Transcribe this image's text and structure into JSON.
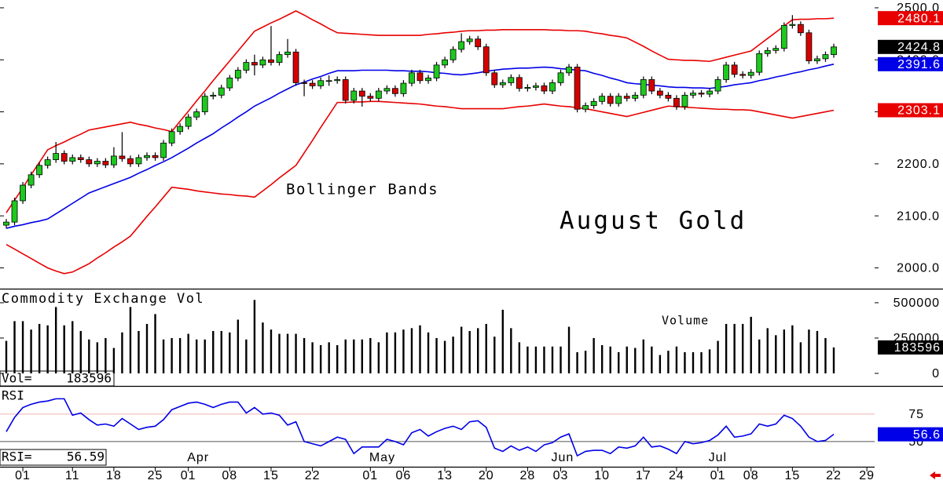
{
  "chart_data": {
    "type": "candlestick",
    "title": "August Gold",
    "annotation": "Bollinger Bands",
    "categories": [
      null,
      null,
      "01",
      null,
      null,
      null,
      null,
      null,
      "11",
      null,
      null,
      null,
      null,
      "18",
      null,
      null,
      null,
      null,
      "25",
      null,
      null,
      null,
      "01",
      null,
      null,
      null,
      null,
      "08",
      null,
      null,
      null,
      null,
      "15",
      null,
      null,
      null,
      null,
      "22",
      null,
      null,
      null,
      null,
      null,
      null,
      "01",
      null,
      null,
      null,
      "06",
      null,
      null,
      null,
      null,
      "13",
      null,
      null,
      null,
      null,
      "20",
      null,
      null,
      null,
      null,
      "28",
      null,
      null,
      null,
      "03",
      null,
      null,
      null,
      null,
      "10",
      null,
      null,
      null,
      null,
      "17",
      null,
      null,
      null,
      "24",
      null,
      null,
      null,
      null,
      "01",
      null,
      null,
      null,
      "08",
      null,
      null,
      null,
      null,
      "15",
      null,
      null,
      null,
      null,
      "22",
      null,
      null,
      null,
      "29"
    ],
    "months": [
      null,
      null,
      null,
      null,
      null,
      null,
      null,
      null,
      null,
      null,
      null,
      null,
      null,
      null,
      null,
      null,
      null,
      null,
      null,
      null,
      null,
      null,
      null,
      "Apr",
      null,
      null,
      null,
      null,
      null,
      null,
      null,
      null,
      null,
      null,
      null,
      null,
      null,
      null,
      null,
      null,
      null,
      null,
      null,
      null,
      null,
      "May",
      null,
      null,
      null,
      null,
      null,
      null,
      null,
      null,
      null,
      null,
      null,
      null,
      null,
      null,
      null,
      null,
      null,
      null,
      null,
      null,
      null,
      "Jun",
      null,
      null,
      null,
      null,
      null,
      null,
      null,
      null,
      null,
      null,
      null,
      null,
      null,
      null,
      null,
      null,
      null,
      null,
      "Jul",
      null,
      null,
      null,
      null,
      null,
      null,
      null,
      null,
      null,
      null,
      null,
      null,
      null,
      null,
      null,
      null,
      null,
      null
    ],
    "ylim": [
      1960,
      2515
    ],
    "yticks": [
      {
        "value": 2000,
        "label": "2000.0"
      },
      {
        "value": 2100,
        "label": "2100.0"
      },
      {
        "value": 2200,
        "label": "2200.0"
      },
      {
        "value": 2300,
        "label": "2300.0"
      },
      {
        "value": 2400,
        "label": "2400.0"
      },
      {
        "value": 2500,
        "label": "2500.0"
      }
    ],
    "up_color": "#1ec81e",
    "down_color": "#d40000",
    "close_label_color": "#000000",
    "open": [
      2082,
      2088,
      2129,
      2159,
      2179,
      2197,
      2208,
      2220,
      2205,
      2212,
      2208,
      2200,
      2205,
      2198,
      2215,
      2210,
      2200,
      2212,
      2216,
      2212,
      2240,
      2262,
      2272,
      2290,
      2300,
      2330,
      2332,
      2346,
      2365,
      2380,
      2395,
      2390,
      2400,
      2395,
      2410,
      2415,
      2356,
      2355,
      2350,
      2360,
      2360,
      2362,
      2322,
      2340,
      2330,
      2326,
      2340,
      2345,
      2335,
      2355,
      2375,
      2360,
      2365,
      2390,
      2400,
      2420,
      2435,
      2440,
      2425,
      2375,
      2352,
      2356,
      2366,
      2345,
      2347,
      2350,
      2340,
      2356,
      2375,
      2386,
      2305,
      2312,
      2320,
      2330,
      2316,
      2330,
      2326,
      2332,
      2362,
      2340,
      2332,
      2326,
      2310,
      2332,
      2336,
      2334,
      2340,
      2362,
      2390,
      2372,
      2370,
      2376,
      2412,
      2418,
      2422,
      2466,
      2468,
      2452,
      2398,
      2402,
      2410,
      null,
      null,
      null,
      null
    ],
    "high": [
      2094,
      2135,
      2165,
      2185,
      2203,
      2214,
      2242,
      2226,
      2218,
      2218,
      2214,
      2211,
      2211,
      2232,
      2261,
      2216,
      2218,
      2222,
      2222,
      2246,
      2268,
      2278,
      2296,
      2306,
      2336,
      2338,
      2352,
      2371,
      2386,
      2401,
      2410,
      2406,
      2465,
      2416,
      2440,
      2421,
      2362,
      2361,
      2366,
      2370,
      2368,
      2368,
      2346,
      2346,
      2336,
      2346,
      2351,
      2351,
      2361,
      2381,
      2381,
      2371,
      2396,
      2406,
      2426,
      2451,
      2446,
      2446,
      2431,
      2381,
      2362,
      2372,
      2372,
      2353,
      2356,
      2356,
      2362,
      2381,
      2392,
      2392,
      2318,
      2326,
      2336,
      2336,
      2336,
      2336,
      2338,
      2368,
      2368,
      2346,
      2338,
      2332,
      2338,
      2342,
      2342,
      2346,
      2368,
      2396,
      2396,
      2378,
      2382,
      2418,
      2424,
      2428,
      2472,
      2486,
      2474,
      2458,
      2408,
      2416,
      2431,
      null,
      null,
      null,
      null
    ],
    "low": [
      2076,
      2082,
      2123,
      2153,
      2173,
      2191,
      2202,
      2199,
      2199,
      2202,
      2194,
      2194,
      2192,
      2192,
      2204,
      2194,
      2194,
      2206,
      2206,
      2206,
      2234,
      2256,
      2266,
      2284,
      2294,
      2324,
      2326,
      2340,
      2359,
      2374,
      2370,
      2384,
      2389,
      2389,
      2404,
      2350,
      2330,
      2344,
      2344,
      2350,
      2354,
      2316,
      2316,
      2310,
      2320,
      2320,
      2334,
      2329,
      2329,
      2349,
      2354,
      2354,
      2359,
      2384,
      2394,
      2414,
      2429,
      2419,
      2369,
      2346,
      2346,
      2350,
      2339,
      2339,
      2341,
      2334,
      2334,
      2350,
      2369,
      2299,
      2299,
      2306,
      2314,
      2310,
      2310,
      2320,
      2320,
      2326,
      2334,
      2326,
      2320,
      2304,
      2304,
      2326,
      2328,
      2328,
      2334,
      2356,
      2366,
      2364,
      2364,
      2370,
      2406,
      2412,
      2416,
      2460,
      2446,
      2392,
      2392,
      2396,
      2404,
      null,
      null,
      null,
      null
    ],
    "close": [
      2088,
      2129,
      2159,
      2179,
      2197,
      2208,
      2220,
      2205,
      2212,
      2208,
      2200,
      2205,
      2198,
      2215,
      2210,
      2200,
      2212,
      2216,
      2212,
      2240,
      2262,
      2272,
      2290,
      2300,
      2330,
      2332,
      2346,
      2365,
      2380,
      2395,
      2390,
      2400,
      2395,
      2410,
      2415,
      2356,
      2355,
      2350,
      2360,
      2360,
      2362,
      2322,
      2340,
      2330,
      2326,
      2340,
      2345,
      2335,
      2355,
      2375,
      2360,
      2365,
      2390,
      2400,
      2420,
      2435,
      2440,
      2425,
      2375,
      2352,
      2356,
      2366,
      2345,
      2347,
      2350,
      2340,
      2356,
      2375,
      2386,
      2305,
      2312,
      2320,
      2330,
      2316,
      2330,
      2326,
      2332,
      2362,
      2340,
      2332,
      2326,
      2310,
      2332,
      2336,
      2334,
      2340,
      2362,
      2390,
      2372,
      2370,
      2376,
      2412,
      2418,
      2422,
      2466,
      2468,
      2452,
      2398,
      2402,
      2410,
      2424.8,
      null,
      null,
      null,
      null
    ],
    "bands": [
      {
        "color": "#e80000",
        "values": [
          2106,
          2130,
          2154,
          2179,
          2203,
          2227,
          2235,
          2242,
          2250,
          2257,
          2265,
          2268,
          2271,
          2274,
          2277,
          2280,
          2276,
          2273,
          2269,
          2266,
          2262,
          2282,
          2301,
          2321,
          2340,
          2360,
          2379,
          2398,
          2417,
          2436,
          2455,
          2463,
          2471,
          2478,
          2486,
          2494,
          2486,
          2477,
          2469,
          2460,
          2452,
          2451,
          2450,
          2449,
          2448,
          2447,
          2447,
          2447,
          2447,
          2447,
          2447,
          2449,
          2450,
          2452,
          2453,
          2455,
          2456,
          2456,
          2457,
          2457,
          2458,
          2458,
          2458,
          2458,
          2458,
          2458,
          2457,
          2457,
          2456,
          2456,
          2455,
          2452,
          2450,
          2447,
          2445,
          2442,
          2434,
          2426,
          2417,
          2409,
          2401,
          2400,
          2399,
          2399,
          2398,
          2397,
          2401,
          2405,
          2409,
          2413,
          2417,
          2429,
          2441,
          2453,
          2465,
          2477,
          2478,
          2478,
          2479,
          2479,
          2480.1,
          null,
          null,
          null,
          null
        ]
      },
      {
        "color": "#0000e8",
        "values": [
          2076,
          2080,
          2083,
          2087,
          2090,
          2094,
          2104,
          2114,
          2124,
          2134,
          2144,
          2150,
          2156,
          2162,
          2168,
          2174,
          2182,
          2189,
          2197,
          2204,
          2212,
          2221,
          2230,
          2240,
          2249,
          2258,
          2269,
          2279,
          2290,
          2300,
          2311,
          2319,
          2327,
          2336,
          2344,
          2352,
          2357,
          2363,
          2368,
          2374,
          2379,
          2379,
          2379,
          2380,
          2380,
          2380,
          2380,
          2379,
          2379,
          2378,
          2378,
          2377,
          2375,
          2374,
          2372,
          2371,
          2373,
          2375,
          2378,
          2380,
          2382,
          2383,
          2384,
          2384,
          2385,
          2386,
          2385,
          2383,
          2382,
          2380,
          2379,
          2374,
          2370,
          2365,
          2361,
          2356,
          2354,
          2353,
          2351,
          2350,
          2348,
          2347,
          2347,
          2346,
          2346,
          2345,
          2347,
          2349,
          2352,
          2354,
          2356,
          2360,
          2363,
          2367,
          2370,
          2374,
          2377,
          2381,
          2384,
          2388,
          2391.6,
          null,
          null,
          null,
          null
        ]
      },
      {
        "color": "#e80000",
        "values": [
          2045,
          2036,
          2027,
          2018,
          2009,
          2000,
          1994,
          1989,
          1992,
          2000,
          2008,
          2019,
          2029,
          2040,
          2050,
          2061,
          2080,
          2099,
          2117,
          2136,
          2155,
          2153,
          2151,
          2148,
          2146,
          2144,
          2142,
          2141,
          2139,
          2138,
          2136,
          2148,
          2160,
          2173,
          2185,
          2197,
          2221,
          2245,
          2270,
          2294,
          2318,
          2318,
          2319,
          2319,
          2320,
          2320,
          2319,
          2318,
          2317,
          2316,
          2315,
          2313,
          2311,
          2310,
          2308,
          2306,
          2306,
          2306,
          2306,
          2306,
          2306,
          2308,
          2310,
          2311,
          2313,
          2315,
          2313,
          2311,
          2310,
          2308,
          2306,
          2303,
          2300,
          2297,
          2294,
          2291,
          2295,
          2299,
          2303,
          2307,
          2311,
          2310,
          2309,
          2308,
          2307,
          2306,
          2305,
          2305,
          2304,
          2304,
          2303,
          2300,
          2297,
          2294,
          2291,
          2288,
          2291,
          2294,
          2297,
          2300,
          2303.1,
          null,
          null,
          null,
          null
        ]
      }
    ],
    "volume": {
      "type": "bar",
      "title": "Commodity Exchange Vol",
      "label": "Volume",
      "readout_label": "Vol=",
      "color": "#000000",
      "ylim": [
        -89000,
        594000
      ],
      "yticks": [
        0,
        250000,
        500000
      ],
      "values": [
        230000,
        370000,
        370000,
        310000,
        350000,
        340000,
        470000,
        340000,
        370000,
        300000,
        240000,
        220000,
        250000,
        180000,
        290000,
        470000,
        300000,
        350000,
        420000,
        240000,
        250000,
        250000,
        280000,
        240000,
        240000,
        300000,
        300000,
        290000,
        380000,
        240000,
        520000,
        360000,
        310000,
        280000,
        280000,
        280000,
        250000,
        220000,
        200000,
        220000,
        200000,
        240000,
        240000,
        240000,
        250000,
        220000,
        290000,
        290000,
        310000,
        320000,
        340000,
        290000,
        250000,
        230000,
        260000,
        330000,
        300000,
        320000,
        350000,
        260000,
        450000,
        320000,
        220000,
        190000,
        190000,
        190000,
        190000,
        190000,
        330000,
        150000,
        160000,
        250000,
        200000,
        190000,
        150000,
        190000,
        180000,
        240000,
        190000,
        130000,
        160000,
        190000,
        150000,
        150000,
        150000,
        170000,
        230000,
        350000,
        350000,
        350000,
        400000,
        240000,
        320000,
        270000,
        310000,
        340000,
        220000,
        310000,
        300000,
        250000,
        183596,
        null,
        null,
        null,
        null
      ]
    },
    "rsi": {
      "type": "line",
      "title": "RSI",
      "readout_label": "RSI=",
      "color": "#0000e8",
      "ylim": [
        27,
        100
      ],
      "yticks": [
        50,
        75
      ],
      "grid": true,
      "grid_colors": [
        "#555555",
        "#f0b0b0"
      ],
      "values": [
        59,
        72,
        81,
        84,
        86,
        87,
        89,
        89,
        74,
        76,
        70,
        65,
        66,
        64,
        71,
        66,
        61,
        63,
        64,
        70,
        79,
        82,
        85,
        86,
        84,
        81,
        84,
        86,
        86,
        76,
        81,
        75,
        76,
        74,
        65,
        68,
        50,
        48,
        46,
        50,
        54,
        52,
        39,
        45,
        45,
        45,
        52,
        50,
        47,
        58,
        61,
        55,
        59,
        62,
        64,
        61,
        68,
        69,
        63,
        44,
        41,
        46,
        42,
        45,
        41,
        47,
        49,
        54,
        57,
        37,
        41,
        42,
        42,
        39,
        45,
        44,
        46,
        54,
        45,
        46,
        43,
        39,
        50,
        48,
        49,
        51,
        56,
        64,
        54,
        55,
        57,
        66,
        64,
        66,
        74,
        71,
        64,
        54,
        50,
        51,
        56.59,
        null,
        null,
        null,
        null
      ],
      "value_labels": [
        null,
        null,
        null,
        null,
        null,
        null,
        null,
        null,
        null,
        null,
        null,
        null,
        null,
        null,
        null,
        null,
        null,
        null,
        null,
        null,
        null,
        null,
        null,
        null,
        null,
        null,
        null,
        null,
        null,
        null,
        null,
        null,
        null,
        null,
        null,
        null,
        null,
        null,
        null,
        null,
        null,
        null,
        null,
        null,
        null,
        null,
        null,
        null,
        null,
        null,
        null,
        null,
        null,
        null,
        null,
        null,
        null,
        null,
        null,
        null,
        null,
        null,
        null,
        null,
        null,
        null,
        null,
        null,
        null,
        null,
        null,
        null,
        null,
        null,
        null,
        null,
        null,
        null,
        null,
        null,
        null,
        null,
        null,
        null,
        null,
        null,
        null,
        null,
        null,
        null,
        null,
        null,
        null,
        null,
        null,
        null,
        null,
        null,
        null,
        null,
        "56.6",
        null,
        null,
        null,
        null
      ]
    }
  }
}
